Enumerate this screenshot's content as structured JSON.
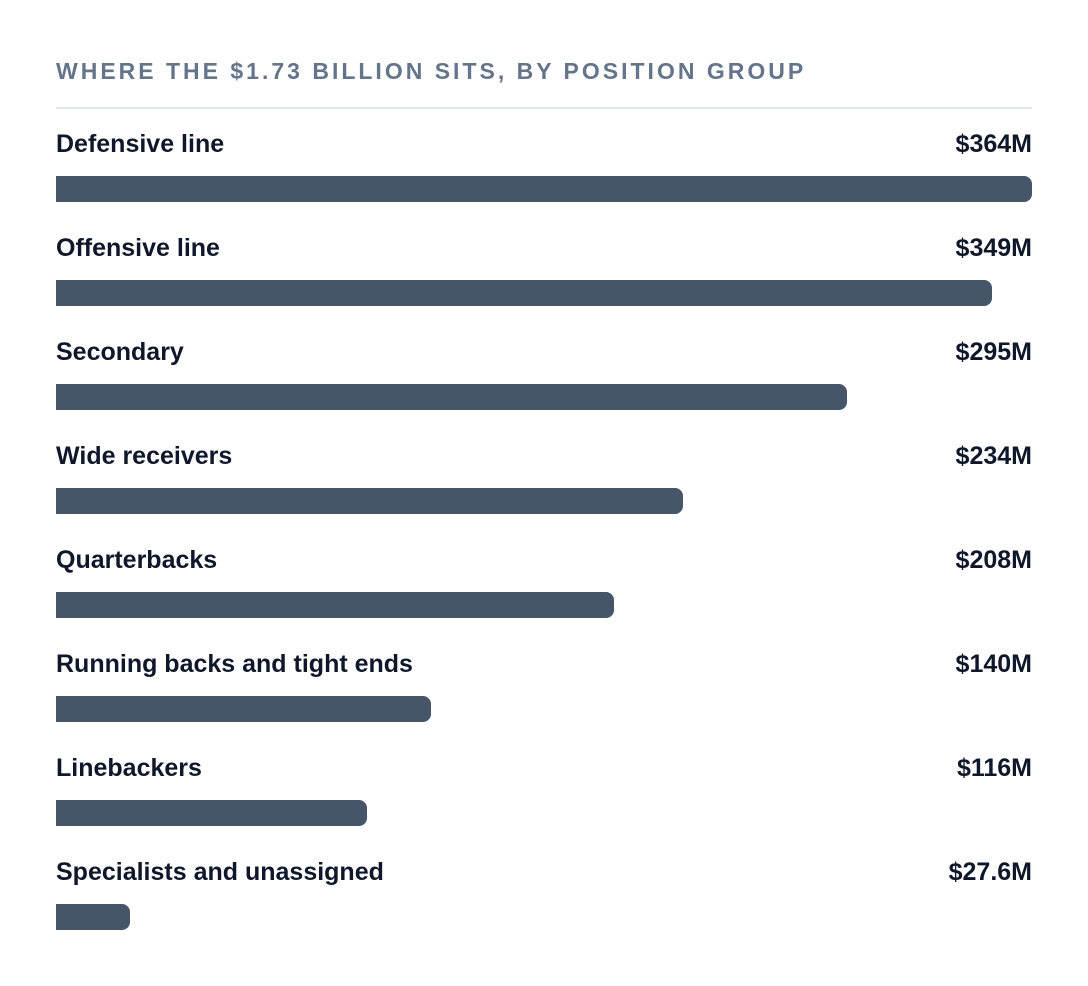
{
  "chart_data": {
    "type": "bar",
    "orientation": "horizontal",
    "title": "WHERE THE $1.73 BILLION SITS, BY POSITION GROUP",
    "categories": [
      "Defensive line",
      "Offensive line",
      "Secondary",
      "Wide receivers",
      "Quarterbacks",
      "Running backs and tight ends",
      "Linebackers",
      "Specialists and unassigned"
    ],
    "values": [
      364,
      349,
      295,
      234,
      208,
      140,
      116,
      27.6
    ],
    "value_labels": [
      "$364M",
      "$349M",
      "$295M",
      "$234M",
      "$208M",
      "$140M",
      "$116M",
      "$27.6M"
    ],
    "unit": "M",
    "xlim": [
      0,
      364
    ],
    "grid": false,
    "legend": "none"
  },
  "colors": {
    "bar": "#475569",
    "title": "#64748b",
    "text": "#0f172a",
    "divider": "#e2e8f0"
  }
}
